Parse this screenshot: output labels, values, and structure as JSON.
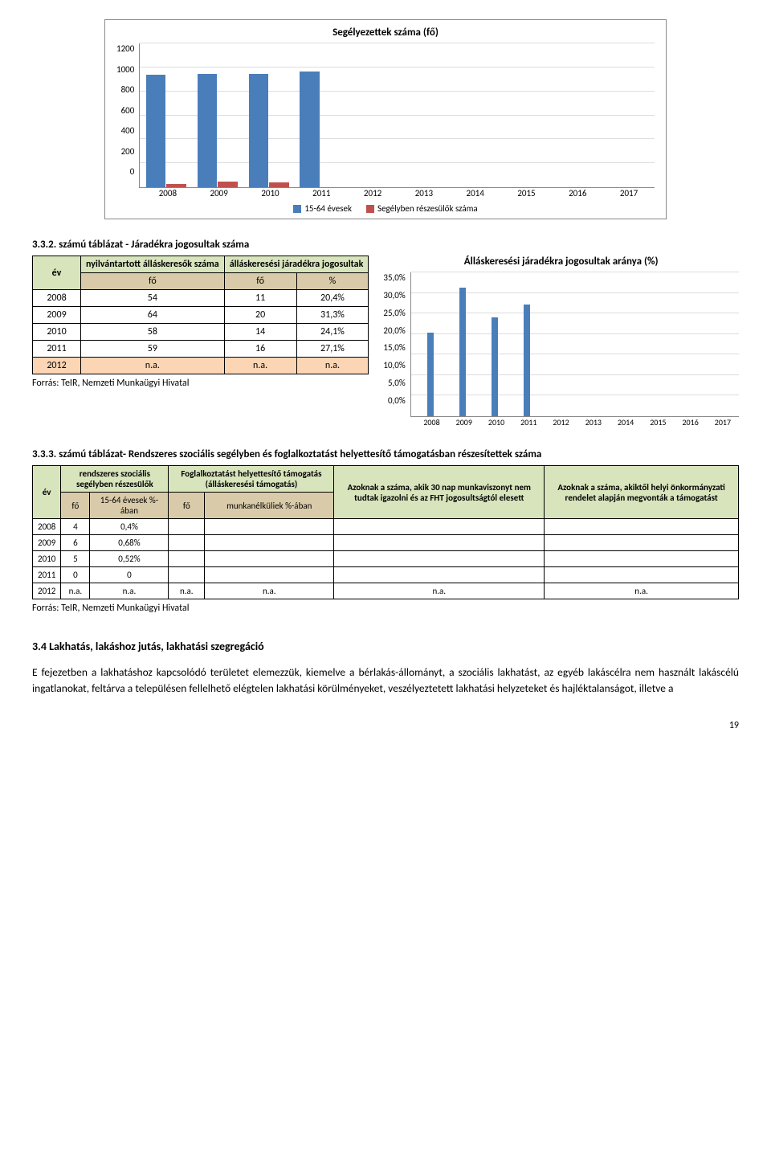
{
  "chart1": {
    "title": "Segélyezettek száma (fő)",
    "y_ticks": [
      "1200",
      "1000",
      "800",
      "600",
      "400",
      "200",
      "0"
    ],
    "ymax": 1200,
    "categories": [
      "2008",
      "2009",
      "2010",
      "2011",
      "2012",
      "2013",
      "2014",
      "2015",
      "2016",
      "2017"
    ],
    "series": [
      {
        "name": "15-64 évesek",
        "color": "#4a7ebb",
        "values": [
          940,
          945,
          945,
          965,
          0,
          0,
          0,
          0,
          0,
          0
        ]
      },
      {
        "name": "Segélyben részesülők száma",
        "color": "#c0504d",
        "values": [
          28,
          45,
          40,
          0,
          0,
          0,
          0,
          0,
          0,
          0
        ]
      }
    ]
  },
  "table1": {
    "caption": "3.3.2. számú táblázat - Járadékra jogosultak száma",
    "headers": {
      "ev": "év",
      "nyilv": "nyilvántartott álláskeresők száma",
      "jog": "álláskeresési járadékra jogosultak",
      "fo": "fő",
      "pct": "%"
    },
    "rows": [
      {
        "year": "2008",
        "fo1": "54",
        "fo2": "11",
        "pct": "20,4%"
      },
      {
        "year": "2009",
        "fo1": "64",
        "fo2": "20",
        "pct": "31,3%"
      },
      {
        "year": "2010",
        "fo1": "58",
        "fo2": "14",
        "pct": "24,1%"
      },
      {
        "year": "2011",
        "fo1": "59",
        "fo2": "16",
        "pct": "27,1%"
      },
      {
        "year": "2012",
        "fo1": "n.a.",
        "fo2": "n.a.",
        "pct": "n.a.",
        "orange": true
      }
    ],
    "source": "Forrás: TeIR, Nemzeti Munkaügyi Hivatal"
  },
  "chart2": {
    "title": "Álláskeresési járadékra jogosultak aránya (%)",
    "y_ticks": [
      "35,0%",
      "30,0%",
      "25,0%",
      "20,0%",
      "15,0%",
      "10,0%",
      "5,0%",
      "0,0%"
    ],
    "ymax": 35,
    "categories": [
      "2008",
      "2009",
      "2010",
      "2011",
      "2012",
      "2013",
      "2014",
      "2015",
      "2016",
      "2017"
    ],
    "values": [
      20.4,
      31.3,
      24.1,
      27.1,
      0,
      0,
      0,
      0,
      0,
      0
    ],
    "bar_color": "#4a7ebb"
  },
  "table2": {
    "caption": "3.3.3. számú táblázat- Rendszeres szociális segélyben és foglalkoztatást helyettesítő támogatásban részesítettek száma",
    "headers": {
      "ev": "év",
      "rsz": "rendszeres szociális segélyben részesülők",
      "fht": "Foglalkoztatást helyettesítő támogatás (álláskeresési támogatás)",
      "azok30": "Azoknak a száma, akik 30 nap munkaviszonyt nem tudtak igazolni és az FHT jogosultságtól elesett",
      "azokhelyi": "Azoknak a száma, akiktől helyi önkormányzati rendelet alapján megvonták a támogatást",
      "fo": "fő",
      "ev1564": "15-64 évesek %-ában",
      "munk": "munkanélküliek %-ában"
    },
    "rows": [
      {
        "year": "2008",
        "fo1": "4",
        "pct1": "0,4%",
        "fo2": "",
        "pct2": "",
        "c5": "",
        "c6": ""
      },
      {
        "year": "2009",
        "fo1": "6",
        "pct1": "0,68%",
        "fo2": "",
        "pct2": "",
        "c5": "",
        "c6": ""
      },
      {
        "year": "2010",
        "fo1": "5",
        "pct1": "0,52%",
        "fo2": "",
        "pct2": "",
        "c5": "",
        "c6": ""
      },
      {
        "year": "2011",
        "fo1": "0",
        "pct1": "0",
        "fo2": "",
        "pct2": "",
        "c5": "",
        "c6": ""
      },
      {
        "year": "2012",
        "fo1": "n.a.",
        "pct1": "n.a.",
        "fo2": "n.a.",
        "pct2": "n.a.",
        "c5": "n.a.",
        "c6": "n.a."
      }
    ],
    "source": "Forrás: TeIR, Nemzeti Munkaügyi Hivatal"
  },
  "section34": {
    "heading": "3.4 Lakhatás, lakáshoz jutás, lakhatási szegregáció",
    "body": "E fejezetben a lakhatáshoz kapcsolódó területet elemezzük, kiemelve a bérlakás-állományt, a szociális lakhatást, az egyéb lakáscélra nem használt lakáscélú ingatlanokat, feltárva a településen fellelhető elégtelen lakhatási körülményeket, veszélyeztetett lakhatási helyzeteket és hajléktalanságot, illetve a"
  },
  "page_no": "19"
}
